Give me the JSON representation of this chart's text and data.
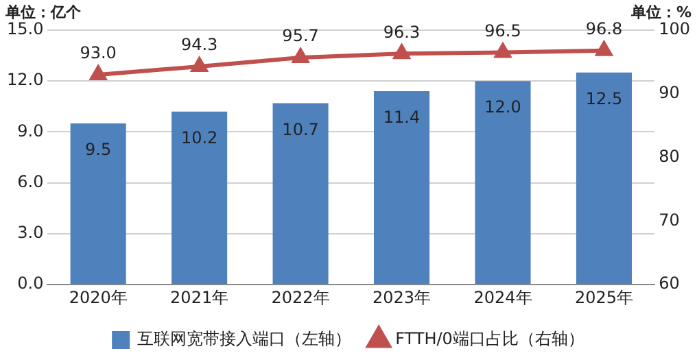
{
  "chart_data": {
    "type": "bar",
    "categories": [
      "2020年",
      "2021年",
      "2022年",
      "2023年",
      "2024年",
      "2025年"
    ],
    "ylabel": "单位：亿个",
    "y2label": "单位：%",
    "series": [
      {
        "name": "互联网宽带接入端口（左轴）",
        "color": "#4f81bd",
        "values": [
          9.5,
          10.2,
          10.7,
          11.4,
          12.0,
          12.5
        ],
        "value_labels": [
          "9.5",
          "10.2",
          "10.7",
          "11.4",
          "12.0",
          "12.5"
        ]
      },
      {
        "name": "FTTH/0端口占比（右轴）",
        "type": "line",
        "axis": "y2",
        "color": "#c0504d",
        "marker": "triangle",
        "values": [
          93.0,
          94.3,
          95.7,
          96.3,
          96.5,
          96.8
        ],
        "value_labels": [
          "93.0",
          "94.3",
          "95.7",
          "96.3",
          "96.5",
          "96.8"
        ]
      }
    ],
    "ylim": [
      0,
      15
    ],
    "yticks": [
      {
        "value": 0,
        "label": "0.0"
      },
      {
        "value": 3,
        "label": "3.0"
      },
      {
        "value": 6,
        "label": "6.0"
      },
      {
        "value": 9,
        "label": "9.0"
      },
      {
        "value": 12,
        "label": "12.0"
      },
      {
        "value": 15,
        "label": "15.0"
      }
    ],
    "y2lim": [
      60,
      100
    ],
    "y2ticks": [
      60,
      70,
      80,
      90,
      100
    ],
    "grid": "y",
    "legend": "bottom"
  }
}
